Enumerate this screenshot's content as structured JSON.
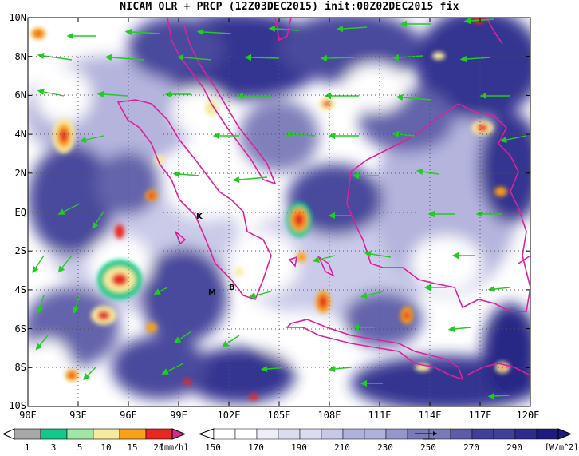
{
  "title": "NICAM OLR + PRCP (12Z03DEC2015) init:00Z02DEC2015 fix",
  "map": {
    "lat_labels": [
      "10N",
      "8N",
      "6N",
      "4N",
      "2N",
      "EQ",
      "2S",
      "4S",
      "6S",
      "8S",
      "10S"
    ],
    "lon_labels": [
      "90E",
      "93E",
      "96E",
      "99E",
      "102E",
      "105E",
      "108E",
      "111E",
      "114E",
      "117E",
      "120E"
    ],
    "lon_range": [
      90,
      120
    ],
    "lat_range": [
      -10,
      10
    ],
    "grid": "dotted",
    "site_markers": [
      {
        "label": "K",
        "lon": 100.3,
        "lat": -0.2
      },
      {
        "label": "M",
        "lon": 100.8,
        "lat": -4.0
      },
      {
        "label": "B",
        "lon": 102.2,
        "lat": -3.8
      }
    ],
    "colors": {
      "coastline": "#e0209a",
      "wind_vector": "#22cc22",
      "olr_deep": "#262c90"
    }
  },
  "precip_colorbar": {
    "ticks": [
      "1",
      "3",
      "5",
      "10",
      "15",
      "20"
    ],
    "unit": "[mm/h]",
    "colors": [
      "#a8a8a8",
      "#12c88a",
      "#a0e6a4",
      "#f8ea9c",
      "#f8a018",
      "#e82820",
      "#d82888"
    ]
  },
  "olr_colorbar": {
    "ticks": [
      "150",
      "170",
      "190",
      "210",
      "230",
      "250",
      "270",
      "290"
    ],
    "unit": "[W/m^2]",
    "colors": [
      "#ffffff",
      "#eeeef8",
      "#dcdcf0",
      "#c8c8e8",
      "#b0b0dc",
      "#9696cc",
      "#7a7ab8",
      "#5c5ca8",
      "#404098",
      "#2c2c8c",
      "#1c1c80"
    ]
  }
}
